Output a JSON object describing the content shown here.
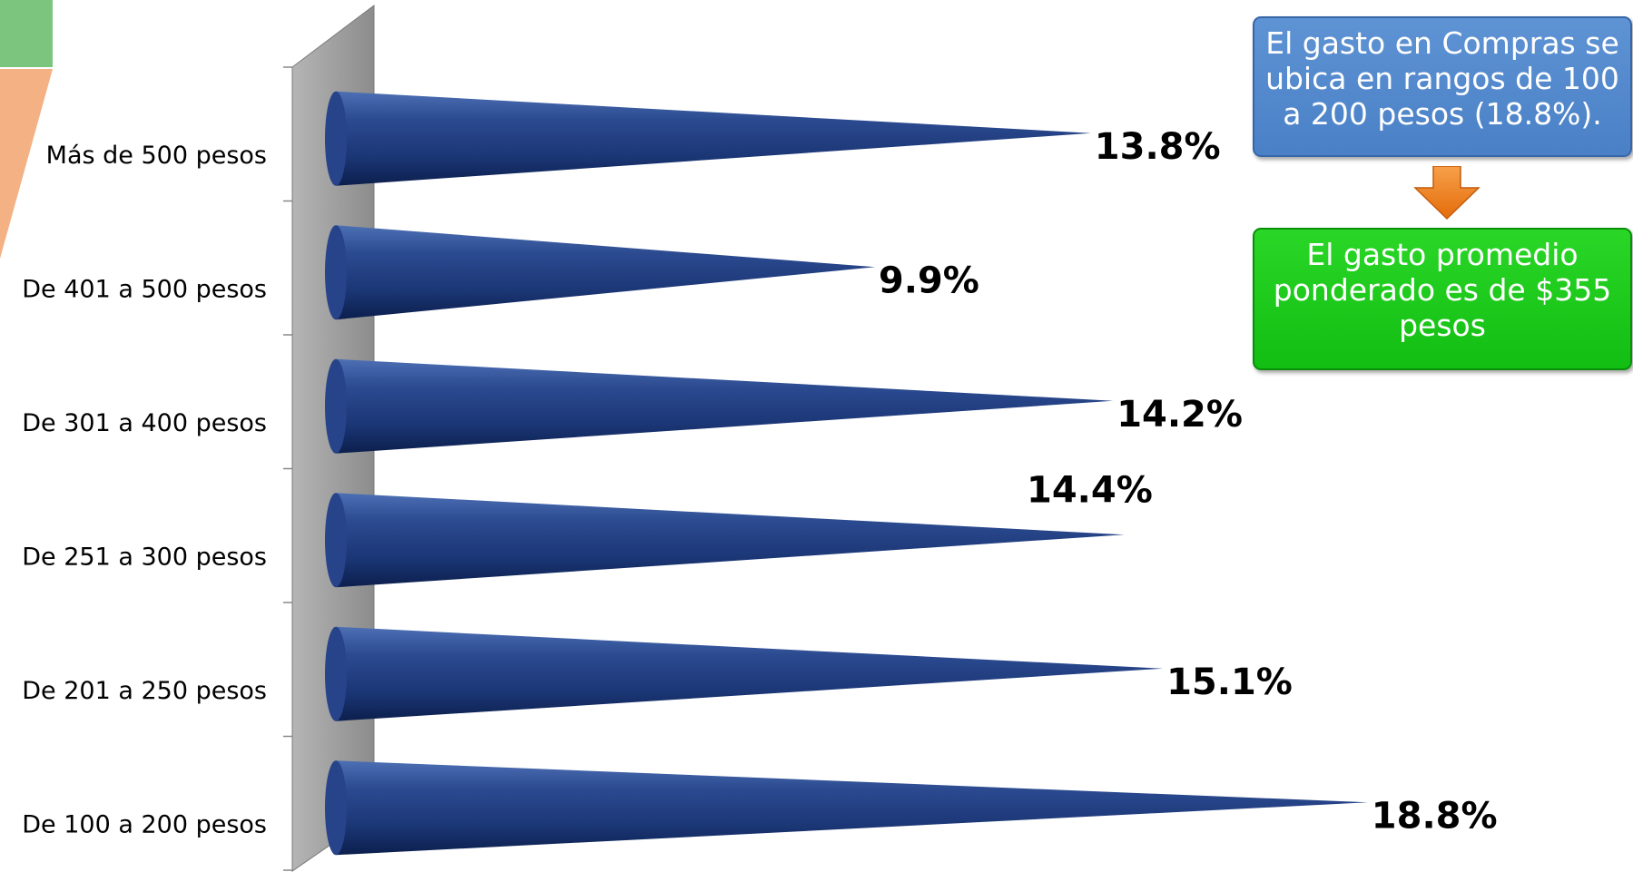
{
  "chart_data": {
    "type": "bar",
    "orientation": "horizontal",
    "categories": [
      "Más de 500 pesos",
      "De 401 a 500 pesos",
      "De 301 a 400 pesos",
      "De 251 a 300 pesos",
      "De 201 a 250 pesos",
      "De 100 a 200 pesos"
    ],
    "values": [
      13.8,
      9.9,
      14.2,
      14.4,
      15.1,
      18.8
    ],
    "value_labels": [
      "13.8%",
      "9.9%",
      "14.2%",
      "14.4%",
      "15.1%",
      "18.8%"
    ],
    "value_unit": "%",
    "xlim": [
      0,
      22
    ],
    "bar_shape": "cone",
    "bar_color": "#1e3a7a",
    "grid": false,
    "legend": "none"
  },
  "callouts": {
    "blue_text": "El gasto en Compras se ubica en rangos de 100 a 200 pesos (18.8%).",
    "green_text": "El gasto promedio ponderado es de $355 pesos",
    "blue_color": "#4a80c6",
    "green_color": "#12be12",
    "arrow_color": "#f07f0e"
  }
}
